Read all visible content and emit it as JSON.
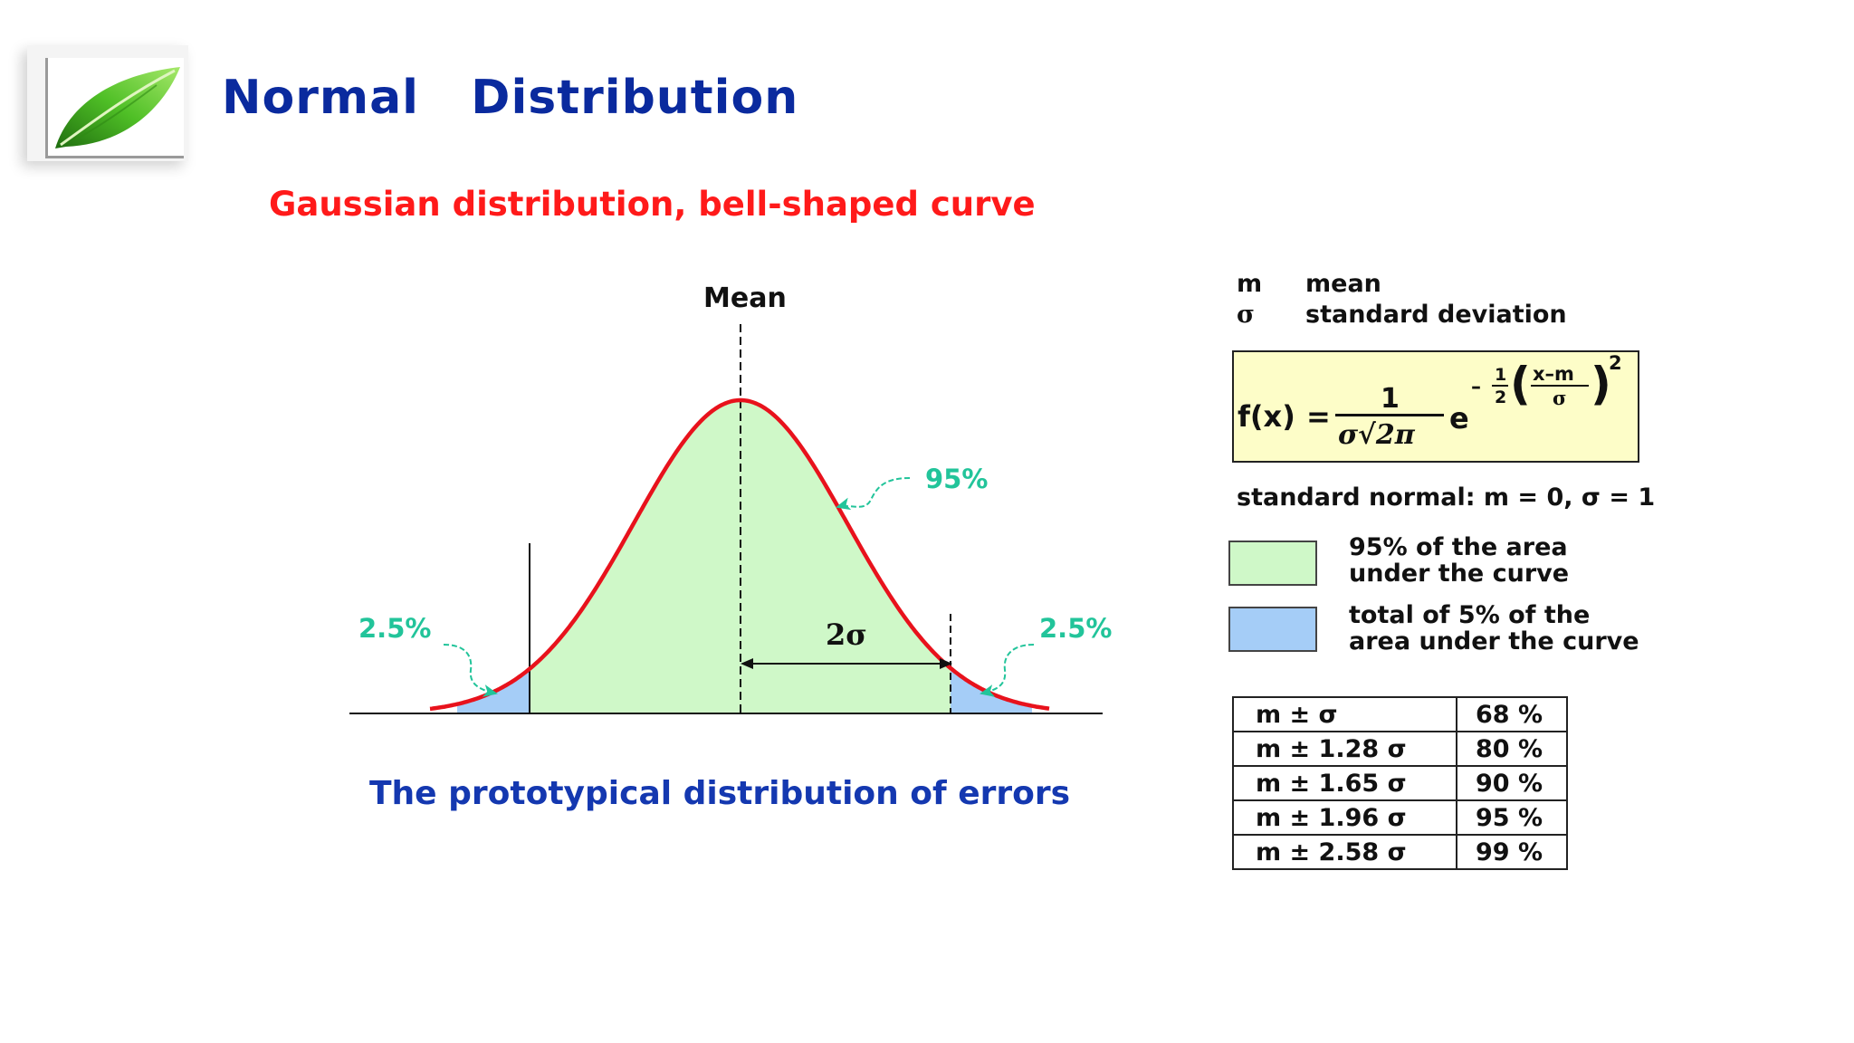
{
  "title": "Normal   Distribution",
  "subtitle": "Gaussian distribution, bell-shaped curve",
  "caption": "The prototypical distribution of errors",
  "logo": {
    "icon": "leaf-icon",
    "color": "#3fa81e"
  },
  "diagram": {
    "mean_label": "Mean",
    "center_label": "95%",
    "tail_left_label": "2.5%",
    "tail_right_label": "2.5%",
    "two_sigma_label": "2σ",
    "colors": {
      "curve": "#e8121c",
      "center_fill": "#cff8c8",
      "tail_fill": "#a5cdf7",
      "annotation": "#22c49a"
    }
  },
  "legend": {
    "defs": [
      {
        "symbol": "m",
        "text": "mean"
      },
      {
        "symbol": "σ",
        "text": "standard deviation"
      }
    ],
    "formula": {
      "lhs": "f(x)",
      "eq": "=",
      "numerator": "1",
      "denominator": "σ√2π",
      "base": "e",
      "exp_minus": "–",
      "exp_half_num": "1",
      "exp_half_den": "2",
      "exp_num": "x–m",
      "exp_den": "σ",
      "exp_power": "2",
      "paren_open": "(",
      "paren_close": ")"
    },
    "standard_normal": "standard normal: m = 0, σ = 1",
    "areas": [
      {
        "line1": "95% of the area",
        "line2": "under the curve",
        "color": "#cff8c8"
      },
      {
        "line1": "total of 5% of the",
        "line2": "area under the curve",
        "color": "#a5cdf7"
      }
    ]
  },
  "ci_table": [
    {
      "range": "m ± σ",
      "pct": "68 %"
    },
    {
      "range": "m ± 1.28 σ",
      "pct": "80 %"
    },
    {
      "range": "m ± 1.65 σ",
      "pct": "90 %"
    },
    {
      "range": "m ± 1.96 σ",
      "pct": "95 %"
    },
    {
      "range": "m ± 2.58 σ",
      "pct": "99 %"
    }
  ]
}
